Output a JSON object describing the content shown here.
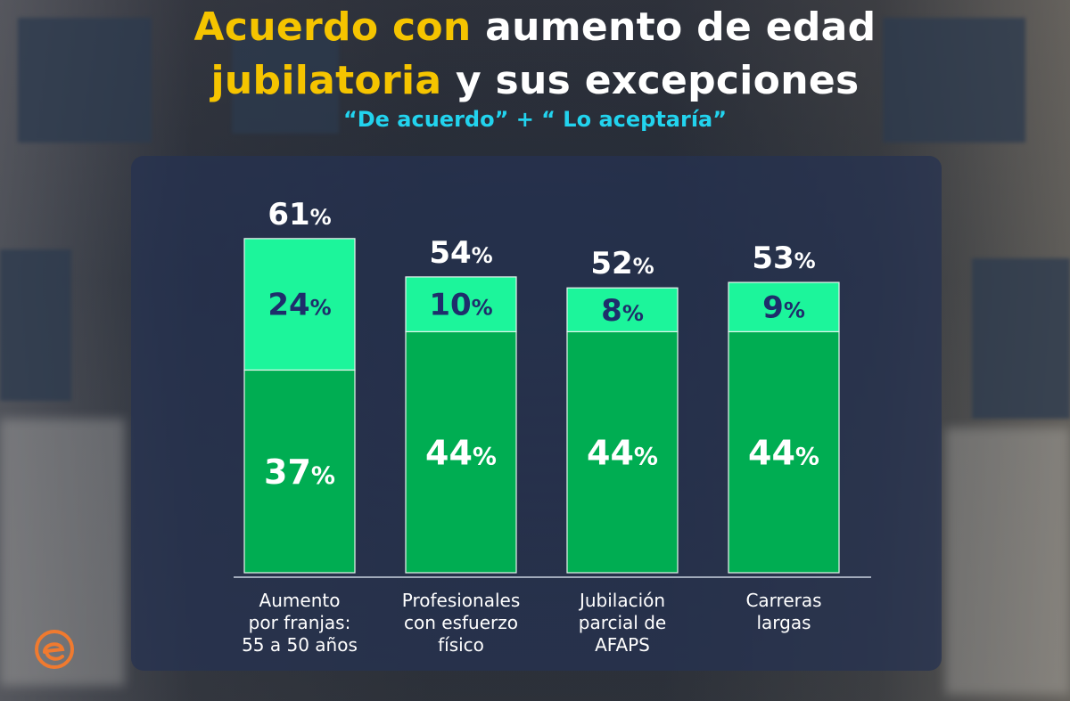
{
  "header": {
    "title_line1_highlight": "Acuerdo con",
    "title_line1_rest": " aumento de edad",
    "title_line2_highlight": "jubilatoria",
    "title_line2_rest": " y sus excepciones",
    "subtitle": "“De acuerdo” + “ Lo aceptaría”"
  },
  "colors": {
    "highlight": "#f5c400",
    "subtitle": "#22d3ee",
    "series_dark": "#00ad52",
    "series_light": "#1cf59b",
    "light_label": "#1e2e6b",
    "panel": "#263252"
  },
  "chart_data": {
    "type": "bar",
    "stacked": true,
    "categories": [
      [
        "Aumento",
        "por franjas:",
        "55 a 50 años"
      ],
      [
        "Profesionales",
        "con esfuerzo",
        "físico"
      ],
      [
        "Jubilación",
        "parcial de",
        "AFAPS"
      ],
      [
        "Carreras",
        "largas"
      ]
    ],
    "series": [
      {
        "values": [
          37,
          44,
          44,
          44
        ]
      },
      {
        "values": [
          24,
          10,
          8,
          9
        ]
      }
    ],
    "totals": [
      61,
      54,
      52,
      53
    ],
    "unit": "%",
    "ylim": [
      0,
      61
    ]
  },
  "logo": {
    "icon": "e-circle-logo",
    "color": "#f07a2f"
  }
}
